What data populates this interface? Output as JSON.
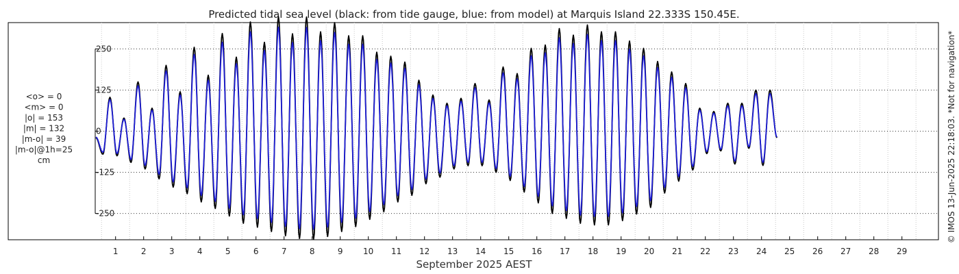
{
  "chart_data": {
    "type": "line",
    "title": "Predicted tidal sea level (black: from tide gauge, blue: from model) at Marquis Island 22.333S 150.45E.",
    "xlabel": "September 2025 AEST",
    "ylabel": "",
    "x_ticks": [
      "1",
      "2",
      "3",
      "4",
      "5",
      "6",
      "7",
      "8",
      "9",
      "10",
      "11",
      "12",
      "13",
      "14",
      "15",
      "16",
      "17",
      "18",
      "19",
      "20",
      "21",
      "22",
      "23",
      "24",
      "25",
      "26",
      "27",
      "28",
      "29"
    ],
    "y_ticks": [
      "250",
      "125",
      "0",
      "-125",
      "-250"
    ],
    "y_tick_values": [
      250,
      125,
      0,
      -125,
      -250
    ],
    "xlim": [
      0.3,
      30.3
    ],
    "ylim": [
      -330,
      330
    ],
    "grid": true,
    "series": [
      {
        "name": "from tide gauge",
        "color": "#000000",
        "points": [
          [
            0.3,
            -20
          ],
          [
            0.55,
            -70
          ],
          [
            0.8,
            103
          ],
          [
            1.05,
            -75
          ],
          [
            1.3,
            40
          ],
          [
            1.55,
            -95
          ],
          [
            1.8,
            150
          ],
          [
            2.05,
            -115
          ],
          [
            2.3,
            70
          ],
          [
            2.55,
            -145
          ],
          [
            2.8,
            200
          ],
          [
            3.05,
            -170
          ],
          [
            3.3,
            120
          ],
          [
            3.55,
            -190
          ],
          [
            3.8,
            255
          ],
          [
            4.05,
            -215
          ],
          [
            4.3,
            170
          ],
          [
            4.55,
            -235
          ],
          [
            4.8,
            297
          ],
          [
            5.05,
            -258
          ],
          [
            5.3,
            225
          ],
          [
            5.55,
            -280
          ],
          [
            5.8,
            332
          ],
          [
            6.05,
            -292
          ],
          [
            6.3,
            270
          ],
          [
            6.55,
            -305
          ],
          [
            6.8,
            348
          ],
          [
            7.05,
            -318
          ],
          [
            7.3,
            296
          ],
          [
            7.55,
            -326
          ],
          [
            7.8,
            347
          ],
          [
            8.05,
            -328
          ],
          [
            8.3,
            302
          ],
          [
            8.55,
            -320
          ],
          [
            8.8,
            330
          ],
          [
            9.05,
            -305
          ],
          [
            9.3,
            290
          ],
          [
            9.55,
            -290
          ],
          [
            9.8,
            290
          ],
          [
            10.05,
            -268
          ],
          [
            10.3,
            240
          ],
          [
            10.55,
            -245
          ],
          [
            10.8,
            228
          ],
          [
            11.05,
            -215
          ],
          [
            11.3,
            210
          ],
          [
            11.55,
            -195
          ],
          [
            11.8,
            155
          ],
          [
            12.05,
            -160
          ],
          [
            12.3,
            110
          ],
          [
            12.55,
            -140
          ],
          [
            12.8,
            85
          ],
          [
            13.05,
            -115
          ],
          [
            13.3,
            100
          ],
          [
            13.55,
            -105
          ],
          [
            13.8,
            145
          ],
          [
            14.05,
            -105
          ],
          [
            14.3,
            95
          ],
          [
            14.55,
            -125
          ],
          [
            14.8,
            195
          ],
          [
            15.05,
            -150
          ],
          [
            15.3,
            175
          ],
          [
            15.55,
            -185
          ],
          [
            15.8,
            252
          ],
          [
            16.05,
            -218
          ],
          [
            16.3,
            262
          ],
          [
            16.55,
            -250
          ],
          [
            16.8,
            312
          ],
          [
            17.05,
            -265
          ],
          [
            17.3,
            292
          ],
          [
            17.55,
            -280
          ],
          [
            17.8,
            323
          ],
          [
            18.05,
            -285
          ],
          [
            18.3,
            302
          ],
          [
            18.55,
            -285
          ],
          [
            18.8,
            302
          ],
          [
            19.05,
            -272
          ],
          [
            19.3,
            274
          ],
          [
            19.55,
            -252
          ],
          [
            19.8,
            252
          ],
          [
            20.05,
            -232
          ],
          [
            20.3,
            212
          ],
          [
            20.55,
            -188
          ],
          [
            20.8,
            180
          ],
          [
            21.05,
            -152
          ],
          [
            21.3,
            145
          ],
          [
            21.55,
            -118
          ],
          [
            21.8,
            70
          ],
          [
            22.05,
            -68
          ],
          [
            22.3,
            60
          ],
          [
            22.55,
            -60
          ],
          [
            22.8,
            85
          ],
          [
            23.05,
            -100
          ],
          [
            23.3,
            85
          ],
          [
            23.55,
            -52
          ],
          [
            23.8,
            125
          ],
          [
            24.05,
            -104
          ],
          [
            24.3,
            125
          ],
          [
            24.55,
            -20
          ]
        ]
      },
      {
        "name": "from model",
        "color": "#1f1fd6",
        "points": [
          [
            0.3,
            -18
          ],
          [
            0.55,
            -64
          ],
          [
            0.8,
            96
          ],
          [
            1.05,
            -68
          ],
          [
            1.3,
            36
          ],
          [
            1.55,
            -86
          ],
          [
            1.8,
            138
          ],
          [
            2.05,
            -104
          ],
          [
            2.3,
            64
          ],
          [
            2.55,
            -131
          ],
          [
            2.8,
            183
          ],
          [
            3.05,
            -154
          ],
          [
            3.3,
            110
          ],
          [
            3.55,
            -172
          ],
          [
            3.8,
            233
          ],
          [
            4.05,
            -195
          ],
          [
            4.3,
            155
          ],
          [
            4.55,
            -213
          ],
          [
            4.8,
            270
          ],
          [
            5.05,
            -234
          ],
          [
            5.3,
            205
          ],
          [
            5.55,
            -254
          ],
          [
            5.8,
            302
          ],
          [
            6.05,
            -265
          ],
          [
            6.3,
            245
          ],
          [
            6.55,
            -277
          ],
          [
            6.8,
            316
          ],
          [
            7.05,
            -289
          ],
          [
            7.3,
            269
          ],
          [
            7.55,
            -296
          ],
          [
            7.8,
            315
          ],
          [
            8.05,
            -298
          ],
          [
            8.3,
            275
          ],
          [
            8.55,
            -291
          ],
          [
            8.8,
            300
          ],
          [
            9.05,
            -277
          ],
          [
            9.3,
            264
          ],
          [
            9.55,
            -264
          ],
          [
            9.8,
            264
          ],
          [
            10.05,
            -244
          ],
          [
            10.3,
            218
          ],
          [
            10.55,
            -223
          ],
          [
            10.8,
            207
          ],
          [
            11.05,
            -196
          ],
          [
            11.3,
            191
          ],
          [
            11.55,
            -177
          ],
          [
            11.8,
            141
          ],
          [
            12.05,
            -146
          ],
          [
            12.3,
            100
          ],
          [
            12.55,
            -127
          ],
          [
            12.8,
            77
          ],
          [
            13.05,
            -105
          ],
          [
            13.3,
            91
          ],
          [
            13.55,
            -95
          ],
          [
            13.8,
            132
          ],
          [
            14.05,
            -95
          ],
          [
            14.3,
            86
          ],
          [
            14.55,
            -114
          ],
          [
            14.8,
            177
          ],
          [
            15.05,
            -137
          ],
          [
            15.3,
            159
          ],
          [
            15.55,
            -168
          ],
          [
            15.8,
            229
          ],
          [
            16.05,
            -198
          ],
          [
            16.3,
            238
          ],
          [
            16.55,
            -227
          ],
          [
            16.8,
            284
          ],
          [
            17.05,
            -241
          ],
          [
            17.3,
            266
          ],
          [
            17.55,
            -255
          ],
          [
            17.8,
            294
          ],
          [
            18.05,
            -259
          ],
          [
            18.3,
            275
          ],
          [
            18.55,
            -259
          ],
          [
            18.8,
            275
          ],
          [
            19.05,
            -248
          ],
          [
            19.3,
            249
          ],
          [
            19.55,
            -229
          ],
          [
            19.8,
            229
          ],
          [
            20.05,
            -211
          ],
          [
            20.3,
            193
          ],
          [
            20.55,
            -171
          ],
          [
            20.8,
            164
          ],
          [
            21.05,
            -138
          ],
          [
            21.3,
            132
          ],
          [
            21.55,
            -107
          ],
          [
            21.8,
            64
          ],
          [
            22.05,
            -62
          ],
          [
            22.3,
            55
          ],
          [
            22.55,
            -55
          ],
          [
            22.8,
            77
          ],
          [
            23.05,
            -91
          ],
          [
            23.3,
            77
          ],
          [
            23.55,
            -47
          ],
          [
            23.8,
            114
          ],
          [
            24.05,
            -95
          ],
          [
            24.3,
            114
          ],
          [
            24.55,
            -18
          ]
        ]
      }
    ]
  },
  "stats": {
    "lines": [
      "<o> = 0",
      "<m> = 0",
      "|o| = 153",
      "|m| = 132",
      "|m-o| = 39",
      "|m-o|@1h=25",
      "cm"
    ]
  },
  "side_note": "© IMOS 13-Jun-2025 22:18:03. *Not for navigation*"
}
